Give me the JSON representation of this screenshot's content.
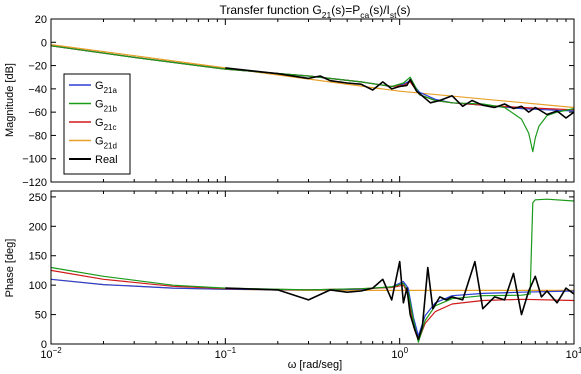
{
  "colors": {
    "G21a": "#2b3fd6",
    "G21b": "#1a9a1a",
    "G21c": "#d01a1a",
    "G21d": "#e8a02a",
    "Real": "#000000"
  },
  "chart_data": [
    {
      "type": "line",
      "title": "Transfer function  G21(s)=Pca(s)/Ist(s)",
      "title_parts": {
        "prefix": "Transfer function  G",
        "sub1": "21",
        "mid1": "(s)=P",
        "sub2": "ca",
        "mid2": "(s)/I",
        "sub3": "st",
        "suffix": "(s)"
      },
      "xlabel": "",
      "ylabel": "Magnitude [dB]",
      "xscale": "log",
      "xlim": [
        0.01,
        10
      ],
      "ylim": [
        -120,
        20
      ],
      "yticks": [
        20,
        0,
        -20,
        -40,
        -60,
        -80,
        -100,
        -120
      ],
      "ytick_labels": [
        "20",
        "0",
        "−20",
        "−40",
        "−60",
        "−80",
        "−100",
        "−120"
      ],
      "grid": false,
      "legend": {
        "placement": "left",
        "entries": [
          {
            "key": "G21a",
            "main": "G",
            "sub": "21a"
          },
          {
            "key": "G21b",
            "main": "G",
            "sub": "21b"
          },
          {
            "key": "G21c",
            "main": "G",
            "sub": "21c"
          },
          {
            "key": "G21d",
            "main": "G",
            "sub": "21d"
          },
          {
            "key": "Real",
            "main": "Real",
            "sub": ""
          }
        ]
      },
      "series": [
        {
          "key": "G21a",
          "x": [
            0.01,
            0.03,
            0.1,
            0.3,
            0.6,
            0.9,
            1.05,
            1.15,
            1.3,
            1.6,
            2,
            3,
            5,
            7,
            10
          ],
          "y": [
            -3,
            -13,
            -23,
            -29,
            -34,
            -38,
            -36,
            -33,
            -43,
            -49,
            -52,
            -54,
            -57,
            -58,
            -59
          ]
        },
        {
          "key": "G21b",
          "x": [
            0.01,
            0.03,
            0.1,
            0.3,
            0.6,
            0.9,
            1.05,
            1.15,
            1.3,
            1.6,
            2,
            3,
            4,
            5,
            5.5,
            5.8,
            6,
            6.3,
            7,
            8,
            10
          ],
          "y": [
            -3,
            -13,
            -23,
            -29,
            -34,
            -38,
            -35,
            -30,
            -45,
            -50,
            -52,
            -53,
            -56,
            -66,
            -78,
            -94,
            -82,
            -72,
            -63,
            -60,
            -57
          ]
        },
        {
          "key": "G21c",
          "x": [
            0.01,
            0.03,
            0.1,
            0.3,
            0.6,
            0.9,
            1.05,
            1.15,
            1.3,
            1.6,
            2,
            3,
            5,
            7,
            10
          ],
          "y": [
            -3,
            -13,
            -23,
            -29,
            -34,
            -38,
            -37,
            -34,
            -45,
            -50,
            -52,
            -54,
            -56,
            -57,
            -58
          ]
        },
        {
          "key": "G21d",
          "x": [
            0.01,
            0.1,
            1,
            10
          ],
          "y": [
            -2,
            -22,
            -42,
            -56
          ]
        },
        {
          "key": "Real",
          "x": [
            0.1,
            0.2,
            0.3,
            0.35,
            0.4,
            0.5,
            0.6,
            0.7,
            0.8,
            0.9,
            1.0,
            1.1,
            1.15,
            1.25,
            1.3,
            1.5,
            1.7,
            2,
            2.3,
            2.6,
            3,
            3.5,
            4,
            4.5,
            5,
            5.5,
            6,
            7,
            8,
            9,
            10
          ],
          "y": [
            -22,
            -27,
            -31,
            -29,
            -33,
            -35,
            -36,
            -41,
            -34,
            -40,
            -38,
            -37,
            -32,
            -42,
            -44,
            -52,
            -50,
            -46,
            -55,
            -50,
            -54,
            -56,
            -53,
            -57,
            -55,
            -60,
            -56,
            -62,
            -59,
            -65,
            -60
          ]
        }
      ]
    },
    {
      "type": "line",
      "title": "",
      "xlabel": "ω [rad/seg]",
      "ylabel": "Phase [deg]",
      "xscale": "log",
      "xlim": [
        0.01,
        10
      ],
      "ylim": [
        0,
        260
      ],
      "yticks": [
        0,
        50,
        100,
        150,
        200,
        250
      ],
      "ytick_labels": [
        "0",
        "50",
        "100",
        "150",
        "200",
        "250"
      ],
      "xtick_labels": [
        {
          "base": "10",
          "exp": "−2"
        },
        {
          "base": "10",
          "exp": "−1"
        },
        {
          "base": "10",
          "exp": "0"
        },
        {
          "base": "10",
          "exp": "1"
        }
      ],
      "grid": false,
      "series": [
        {
          "key": "G21a",
          "x": [
            0.01,
            0.02,
            0.05,
            0.1,
            0.3,
            0.6,
            0.9,
            1.05,
            1.12,
            1.2,
            1.28,
            1.4,
            1.6,
            2,
            3,
            5,
            10
          ],
          "y": [
            110,
            101,
            95,
            93,
            92,
            93,
            97,
            106,
            95,
            45,
            14,
            48,
            70,
            82,
            86,
            88,
            90
          ]
        },
        {
          "key": "G21b",
          "x": [
            0.01,
            0.02,
            0.05,
            0.1,
            0.3,
            0.6,
            0.9,
            1.05,
            1.12,
            1.2,
            1.28,
            1.4,
            1.6,
            2,
            3,
            5,
            5.6,
            5.8,
            6,
            7,
            10
          ],
          "y": [
            130,
            115,
            100,
            95,
            92,
            94,
            97,
            103,
            88,
            40,
            3,
            40,
            65,
            77,
            82,
            83,
            85,
            240,
            245,
            246,
            243
          ]
        },
        {
          "key": "G21c",
          "x": [
            0.01,
            0.02,
            0.05,
            0.1,
            0.3,
            0.6,
            0.9,
            1.05,
            1.12,
            1.2,
            1.28,
            1.4,
            1.6,
            2,
            3,
            5,
            10
          ],
          "y": [
            125,
            110,
            98,
            94,
            92,
            94,
            96,
            100,
            86,
            30,
            5,
            35,
            55,
            68,
            74,
            76,
            74
          ]
        },
        {
          "key": "G21d",
          "x": [
            0.01,
            0.02,
            0.05,
            0.1,
            0.3,
            1,
            10
          ],
          "y": [
            110,
            101,
            95,
            93,
            91,
            91,
            91
          ]
        },
        {
          "key": "Real",
          "x": [
            0.1,
            0.2,
            0.3,
            0.4,
            0.5,
            0.6,
            0.7,
            0.8,
            0.9,
            1.0,
            1.05,
            1.1,
            1.15,
            1.22,
            1.28,
            1.35,
            1.45,
            1.55,
            1.7,
            1.85,
            2,
            2.3,
            2.7,
            3,
            3.5,
            4,
            4.5,
            5,
            5.5,
            6,
            6.5,
            7,
            8,
            9,
            10
          ],
          "y": [
            95,
            92,
            75,
            92,
            88,
            90,
            95,
            110,
            75,
            140,
            70,
            95,
            50,
            25,
            8,
            30,
            130,
            60,
            80,
            75,
            80,
            75,
            140,
            60,
            80,
            75,
            120,
            50,
            90,
            115,
            80,
            90,
            70,
            95,
            85
          ]
        }
      ]
    }
  ]
}
